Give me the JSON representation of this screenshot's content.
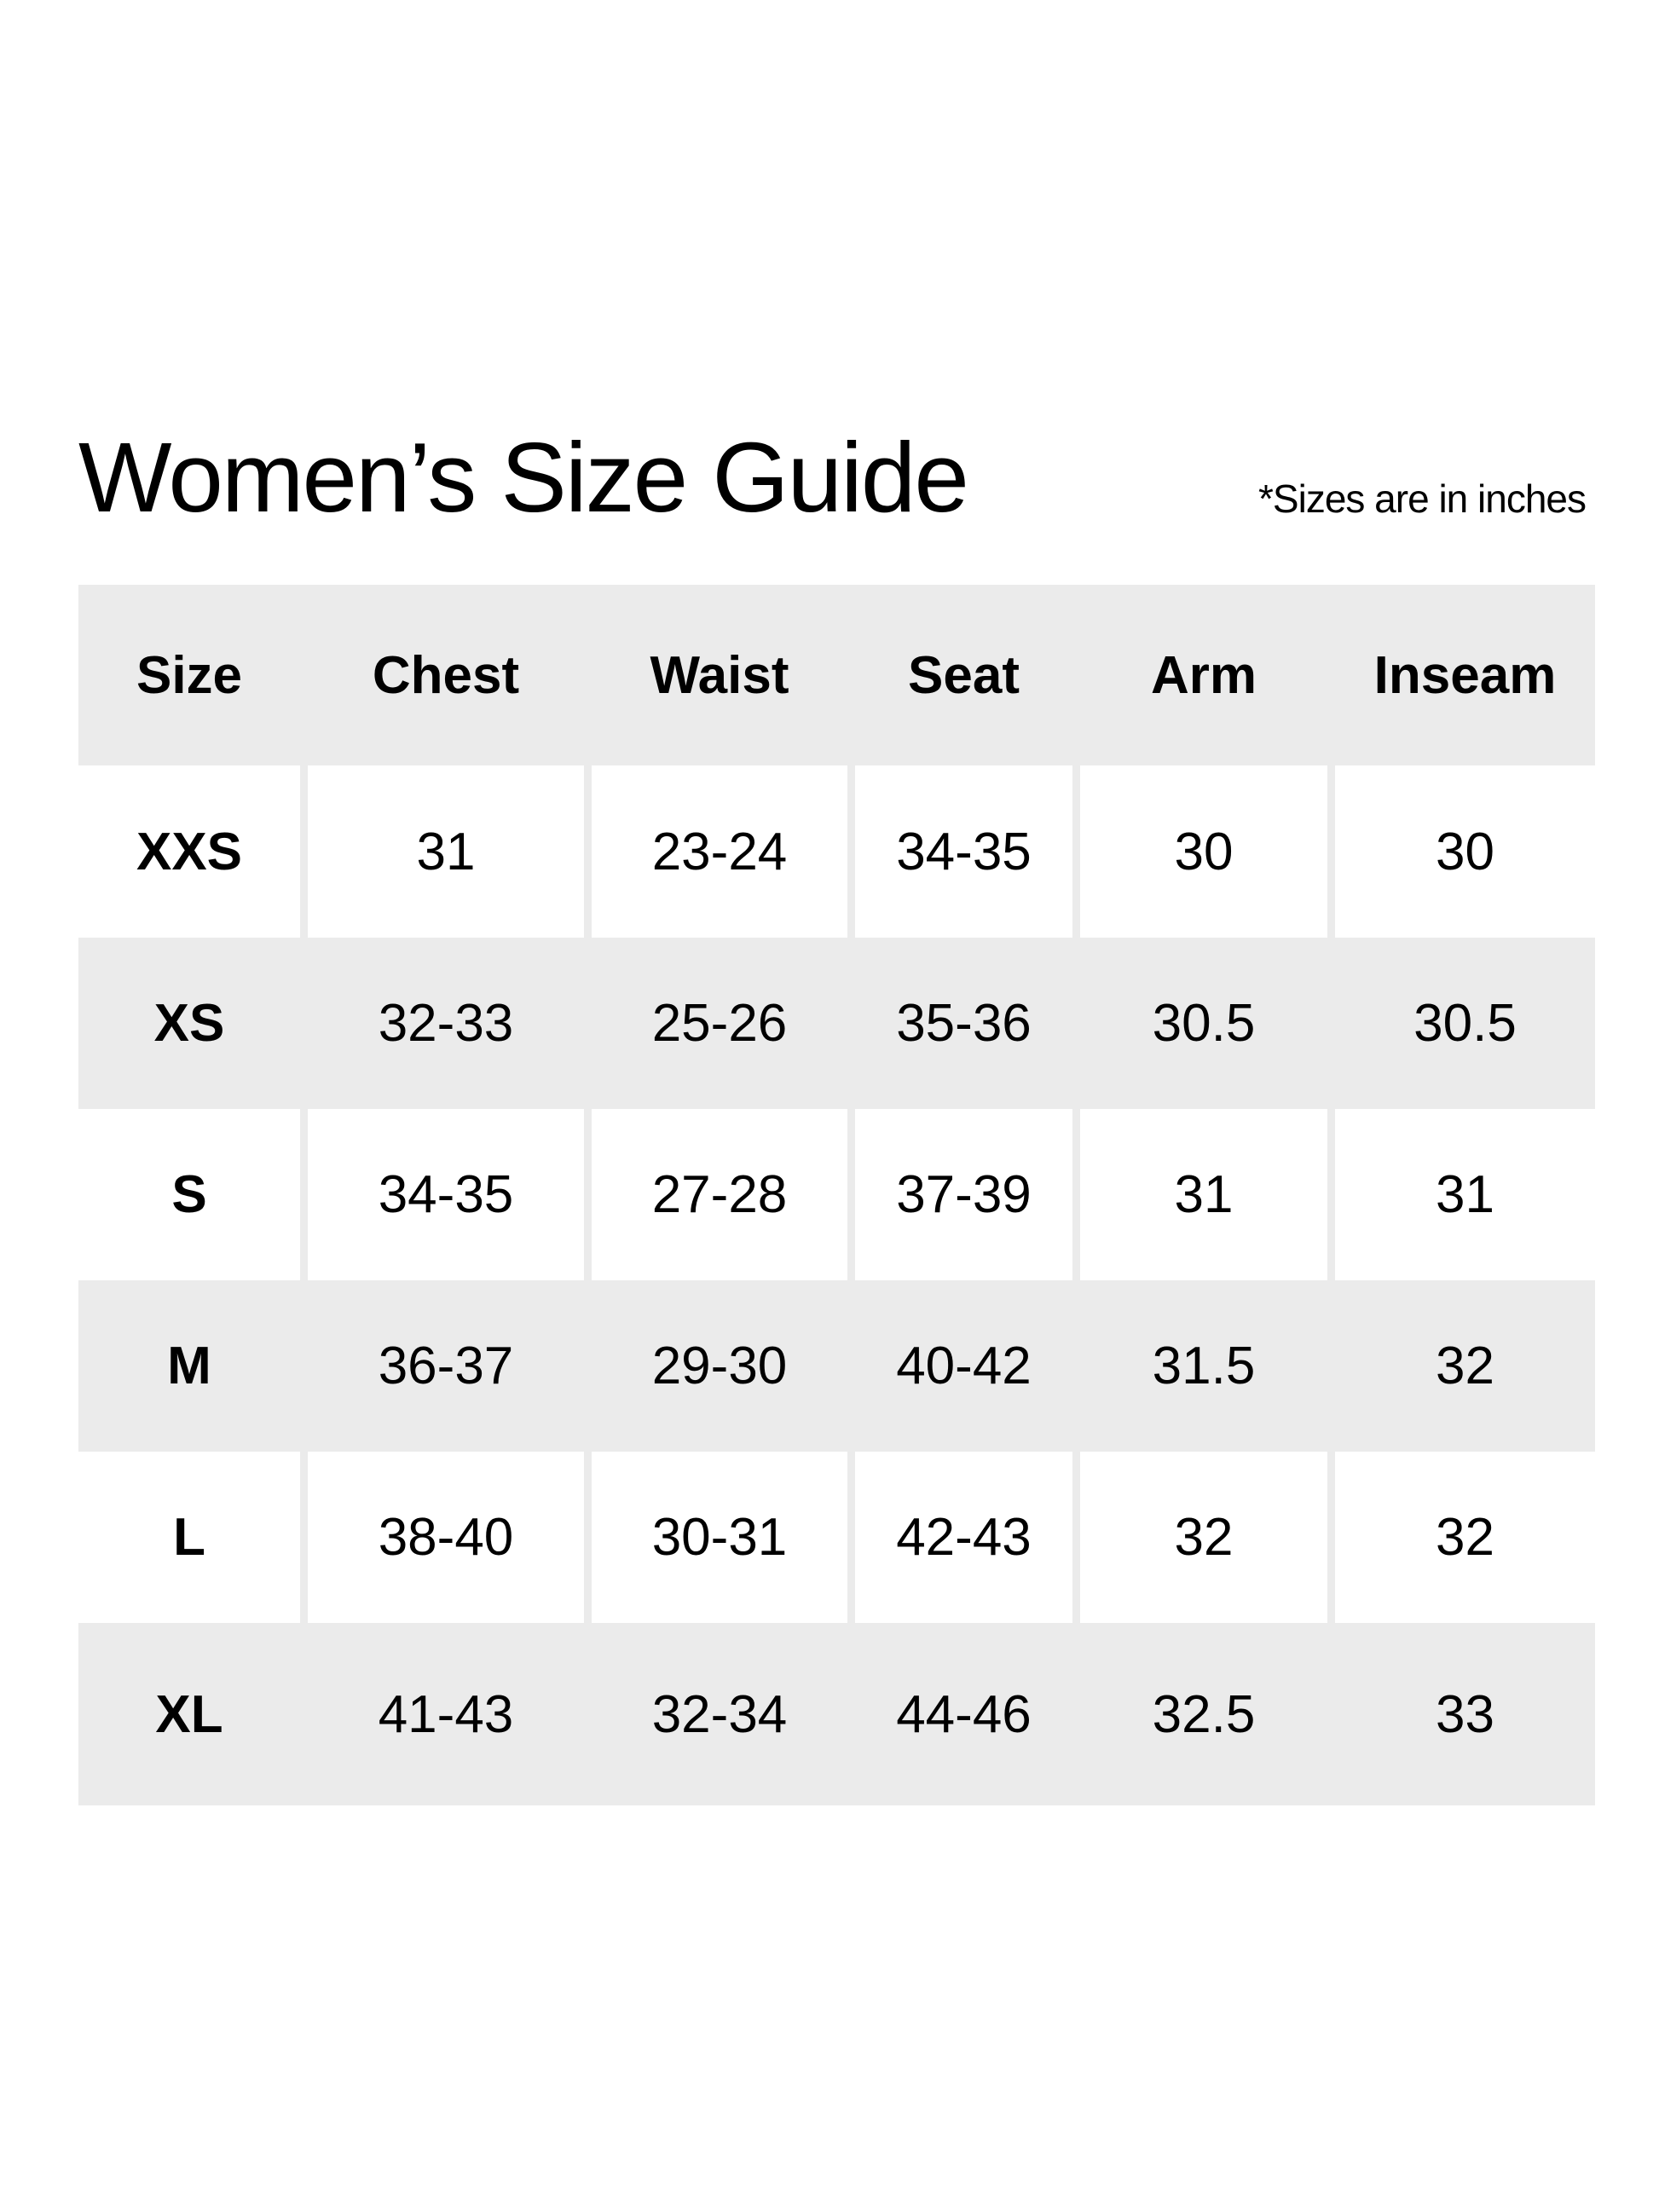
{
  "title": "Women’s Size Guide",
  "note": "*Sizes are in inches",
  "colors": {
    "header_bg": "#ebebeb",
    "alt_row_bg": "#ebebeb",
    "row_bg": "#ffffff",
    "text": "#000000"
  },
  "table": {
    "headers": [
      "Size",
      "Chest",
      "Waist",
      "Seat",
      "Arm",
      "Inseam"
    ],
    "rows": [
      [
        "XXS",
        "31",
        "23-24",
        "34-35",
        "30",
        "30"
      ],
      [
        "XS",
        "32-33",
        "25-26",
        "35-36",
        "30.5",
        "30.5"
      ],
      [
        "S",
        "34-35",
        "27-28",
        "37-39",
        "31",
        "31"
      ],
      [
        "M",
        "36-37",
        "29-30",
        "40-42",
        "31.5",
        "32"
      ],
      [
        "L",
        "38-40",
        "30-31",
        "42-43",
        "32",
        "32"
      ],
      [
        "XL",
        "41-43",
        "32-34",
        "44-46",
        "32.5",
        "33"
      ]
    ]
  }
}
